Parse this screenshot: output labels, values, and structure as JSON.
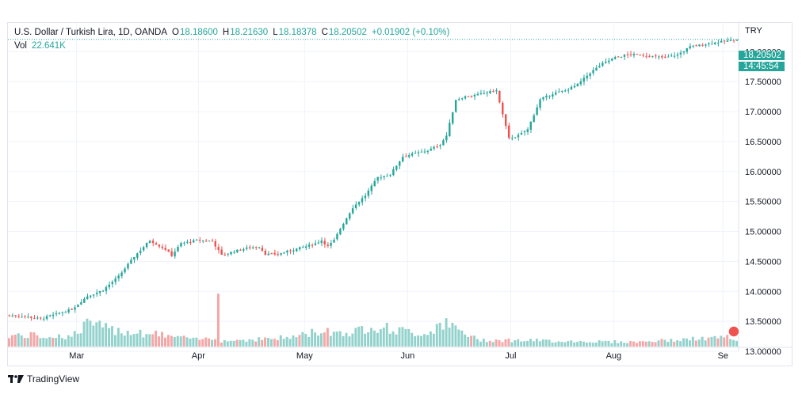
{
  "header": {
    "symbol": "U.S. Dollar / Turkish Lira, 1D, OANDA",
    "open_label": "O",
    "open": "18.18600",
    "high_label": "H",
    "high": "18.21630",
    "low_label": "L",
    "low": "18.18378",
    "close_label": "C",
    "close": "18.20502",
    "change": "+0.01902 (+0.10%)",
    "volume_label": "Vol",
    "volume": "22.641K"
  },
  "currency": "TRY",
  "last_price_tag": "18.20502",
  "countdown_tag": "14:45:54",
  "brand": "TradingView",
  "colors": {
    "up": "#26a69a",
    "down": "#ef5350",
    "up_vol": "#93d2cc",
    "down_vol": "#f5a6a6",
    "grid": "#f0f3fa"
  },
  "chart_data": {
    "type": "candlestick",
    "ylim": [
      13.0,
      18.4
    ],
    "yticks": [
      "13.00000",
      "13.50000",
      "14.00000",
      "14.50000",
      "15.00000",
      "15.50000",
      "16.00000",
      "16.50000",
      "17.00000",
      "17.50000",
      "18.00000"
    ],
    "xticks": [
      "Mar",
      "Apr",
      "May",
      "Jun",
      "Jul",
      "Aug",
      "Se"
    ],
    "legend": "none",
    "grid": true,
    "price_path": [
      [
        0,
        13.6
      ],
      [
        5,
        13.58
      ],
      [
        10,
        13.54
      ],
      [
        15,
        13.62
      ],
      [
        20,
        13.7
      ],
      [
        25,
        13.92
      ],
      [
        30,
        14.02
      ],
      [
        35,
        14.25
      ],
      [
        40,
        14.58
      ],
      [
        45,
        14.85
      ],
      [
        50,
        14.7
      ],
      [
        52,
        14.6
      ],
      [
        55,
        14.8
      ],
      [
        60,
        14.85
      ],
      [
        65,
        14.84
      ],
      [
        68,
        14.6
      ],
      [
        72,
        14.67
      ],
      [
        76,
        14.72
      ],
      [
        80,
        14.75
      ],
      [
        82,
        14.62
      ],
      [
        86,
        14.62
      ],
      [
        90,
        14.68
      ],
      [
        95,
        14.75
      ],
      [
        98,
        14.8
      ],
      [
        100,
        14.85
      ],
      [
        102,
        14.75
      ],
      [
        104,
        14.85
      ],
      [
        106,
        15.05
      ],
      [
        110,
        15.4
      ],
      [
        114,
        15.6
      ],
      [
        118,
        15.9
      ],
      [
        122,
        15.95
      ],
      [
        126,
        16.25
      ],
      [
        130,
        16.3
      ],
      [
        134,
        16.35
      ],
      [
        138,
        16.45
      ],
      [
        140,
        16.6
      ],
      [
        143,
        17.2
      ],
      [
        146,
        17.25
      ],
      [
        150,
        17.28
      ],
      [
        153,
        17.32
      ],
      [
        156,
        17.35
      ],
      [
        158,
        16.95
      ],
      [
        160,
        16.55
      ],
      [
        163,
        16.6
      ],
      [
        166,
        16.7
      ],
      [
        170,
        17.2
      ],
      [
        174,
        17.3
      ],
      [
        178,
        17.35
      ],
      [
        182,
        17.45
      ],
      [
        186,
        17.65
      ],
      [
        190,
        17.8
      ],
      [
        194,
        17.9
      ],
      [
        198,
        17.95
      ],
      [
        202,
        17.95
      ],
      [
        206,
        17.92
      ],
      [
        210,
        17.9
      ],
      [
        214,
        17.95
      ],
      [
        218,
        18.08
      ],
      [
        222,
        18.12
      ],
      [
        226,
        18.15
      ],
      [
        230,
        18.18
      ],
      [
        233,
        18.20502
      ]
    ],
    "volume_path": [
      [
        0,
        1.0
      ],
      [
        20,
        0.9
      ],
      [
        26,
        2.2
      ],
      [
        30,
        1.6
      ],
      [
        40,
        1.3
      ],
      [
        50,
        1.0
      ],
      [
        60,
        0.6
      ],
      [
        66,
        0.8
      ],
      [
        67,
        4.2
      ],
      [
        68,
        0.5
      ],
      [
        90,
        0.8
      ],
      [
        100,
        1.4
      ],
      [
        110,
        1.2
      ],
      [
        116,
        1.9
      ],
      [
        125,
        1.4
      ],
      [
        134,
        1.1
      ],
      [
        138,
        2.2
      ],
      [
        145,
        1.3
      ],
      [
        150,
        0.6
      ],
      [
        200,
        0.4
      ],
      [
        230,
        0.8
      ],
      [
        233,
        0.5
      ]
    ]
  }
}
